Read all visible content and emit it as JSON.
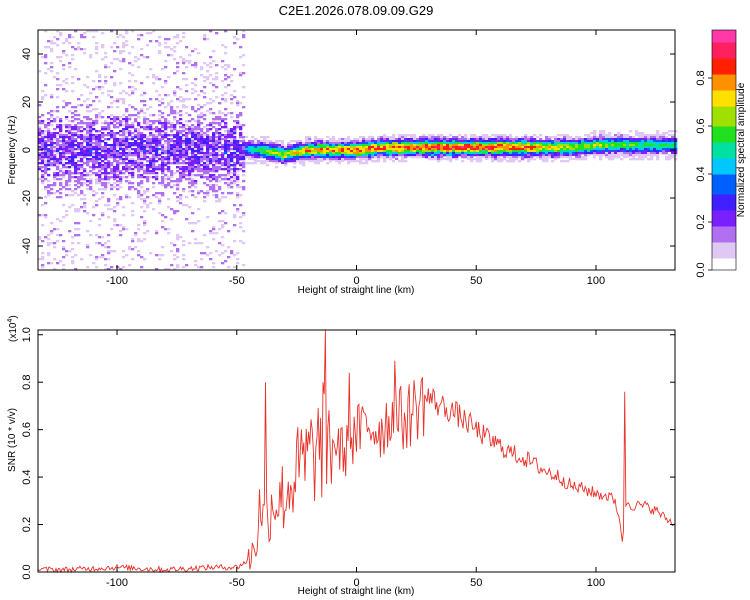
{
  "title": "C2E1.2026.078.09.09.G29",
  "colors": {
    "snr_line": "#e8322a",
    "axis": "#000000",
    "background": "#ffffff"
  },
  "colormap": [
    "#ffffff",
    "#e0c8f5",
    "#b070f0",
    "#7a20ff",
    "#4020ff",
    "#0060ff",
    "#00c8ff",
    "#00e0a0",
    "#20e020",
    "#a0e000",
    "#ffe000",
    "#ff9000",
    "#ff2000",
    "#ff2060",
    "#ff3aa8"
  ],
  "chart_data": [
    {
      "type": "heatmap",
      "xlabel": "Height of straight line (km)",
      "ylabel": "Frequency (Hz)",
      "xlim": [
        -133,
        133
      ],
      "ylim": [
        -50,
        50
      ],
      "xticks": [
        -100,
        -50,
        0,
        50,
        100
      ],
      "yticks": [
        -40,
        -20,
        0,
        20,
        40
      ],
      "colorbar": {
        "label": "Normalized spectral amplitude",
        "range": [
          0,
          1
        ],
        "ticks": [
          "0.0",
          "0.2",
          "0.4",
          "0.6",
          "0.8"
        ]
      },
      "ridge": {
        "x": [
          -133,
          -110,
          -90,
          -70,
          -50,
          -40,
          -30,
          -20,
          -10,
          0,
          10,
          20,
          30,
          40,
          50,
          60,
          70,
          80,
          90,
          100,
          110,
          120,
          133
        ],
        "center_hz": [
          0,
          0,
          0,
          0,
          0,
          0,
          -2,
          0,
          0,
          0,
          1,
          1,
          1,
          1,
          1,
          1,
          1,
          1,
          1,
          2,
          2,
          2,
          2
        ],
        "peak_amplitude": [
          0.28,
          0.28,
          0.28,
          0.28,
          0.35,
          0.6,
          0.75,
          0.8,
          0.85,
          0.9,
          0.9,
          0.9,
          0.95,
          0.95,
          0.95,
          0.95,
          0.9,
          0.75,
          0.7,
          0.7,
          0.65,
          0.6,
          0.55
        ]
      }
    },
    {
      "type": "line",
      "xlabel": "Height of straight line (km)",
      "ylabel": "SNR (10 * v/v)",
      "yscale_note": "(x10",
      "yscale_exp": "4",
      "xlim": [
        -133,
        133
      ],
      "ylim": [
        0,
        1.02
      ],
      "xticks": [
        -100,
        -50,
        0,
        50,
        100
      ],
      "yticks": [
        "0.0",
        "0.2",
        "0.4",
        "0.6",
        "0.8",
        "1.0"
      ],
      "series": [
        {
          "x": [
            -133,
            -120,
            -100,
            -80,
            -60,
            -50,
            -45,
            -42,
            -40,
            -38,
            -35,
            -30,
            -25,
            -20,
            -15,
            -10,
            -5,
            0,
            5,
            10,
            15,
            20,
            25,
            30,
            35,
            40,
            45,
            50,
            55,
            60,
            65,
            70,
            75,
            80,
            85,
            90,
            95,
            100,
            105,
            108,
            110,
            111,
            112,
            113,
            115,
            120,
            125,
            130,
            133
          ],
          "y": [
            0.01,
            0.01,
            0.02,
            0.01,
            0.02,
            0.02,
            0.05,
            0.12,
            0.3,
            0.22,
            0.3,
            0.32,
            0.42,
            0.48,
            0.52,
            0.55,
            0.5,
            0.58,
            0.62,
            0.6,
            0.66,
            0.64,
            0.7,
            0.74,
            0.7,
            0.68,
            0.64,
            0.6,
            0.56,
            0.53,
            0.5,
            0.48,
            0.45,
            0.42,
            0.4,
            0.36,
            0.35,
            0.33,
            0.32,
            0.3,
            0.22,
            0.12,
            0.25,
            0.3,
            0.28,
            0.28,
            0.26,
            0.22,
            0.2
          ],
          "spikes": [
            {
              "x": -38,
              "y": 0.8
            },
            {
              "x": -14,
              "y": 0.8
            },
            {
              "x": -13,
              "y": 1.02
            },
            {
              "x": -3,
              "y": 0.84
            },
            {
              "x": 16,
              "y": 0.89
            },
            {
              "x": 112,
              "y": 0.76
            }
          ]
        }
      ]
    }
  ]
}
